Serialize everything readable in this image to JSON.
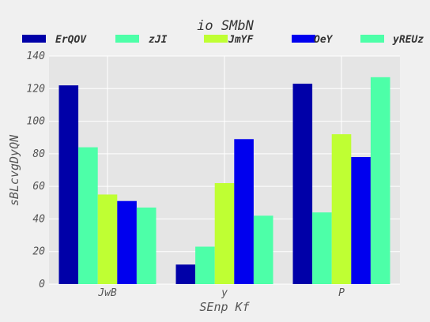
{
  "chart_data": {
    "type": "bar",
    "title": "io SMbN",
    "xlabel": "SEnp Kf",
    "ylabel": "sBLcvgDyQN",
    "categories": [
      "JwB",
      "y",
      "P"
    ],
    "ylim": [
      0,
      140
    ],
    "yticks": [
      0,
      20,
      40,
      60,
      80,
      100,
      120,
      140
    ],
    "grid": true,
    "legend_position": "top",
    "series": [
      {
        "name": "ErQOV",
        "color": "#0000a8",
        "values": [
          122,
          12,
          123
        ]
      },
      {
        "name": "zJI",
        "color": "#4dffa8",
        "values": [
          84,
          23,
          44
        ]
      },
      {
        "name": "JmYF",
        "color": "#bfff33",
        "values": [
          55,
          62,
          92
        ]
      },
      {
        "name": "OeY",
        "color": "#0000ee",
        "values": [
          51,
          89,
          78
        ]
      },
      {
        "name": "yREUz",
        "color": "#4dffa8",
        "values": [
          47,
          42,
          127
        ]
      }
    ]
  }
}
